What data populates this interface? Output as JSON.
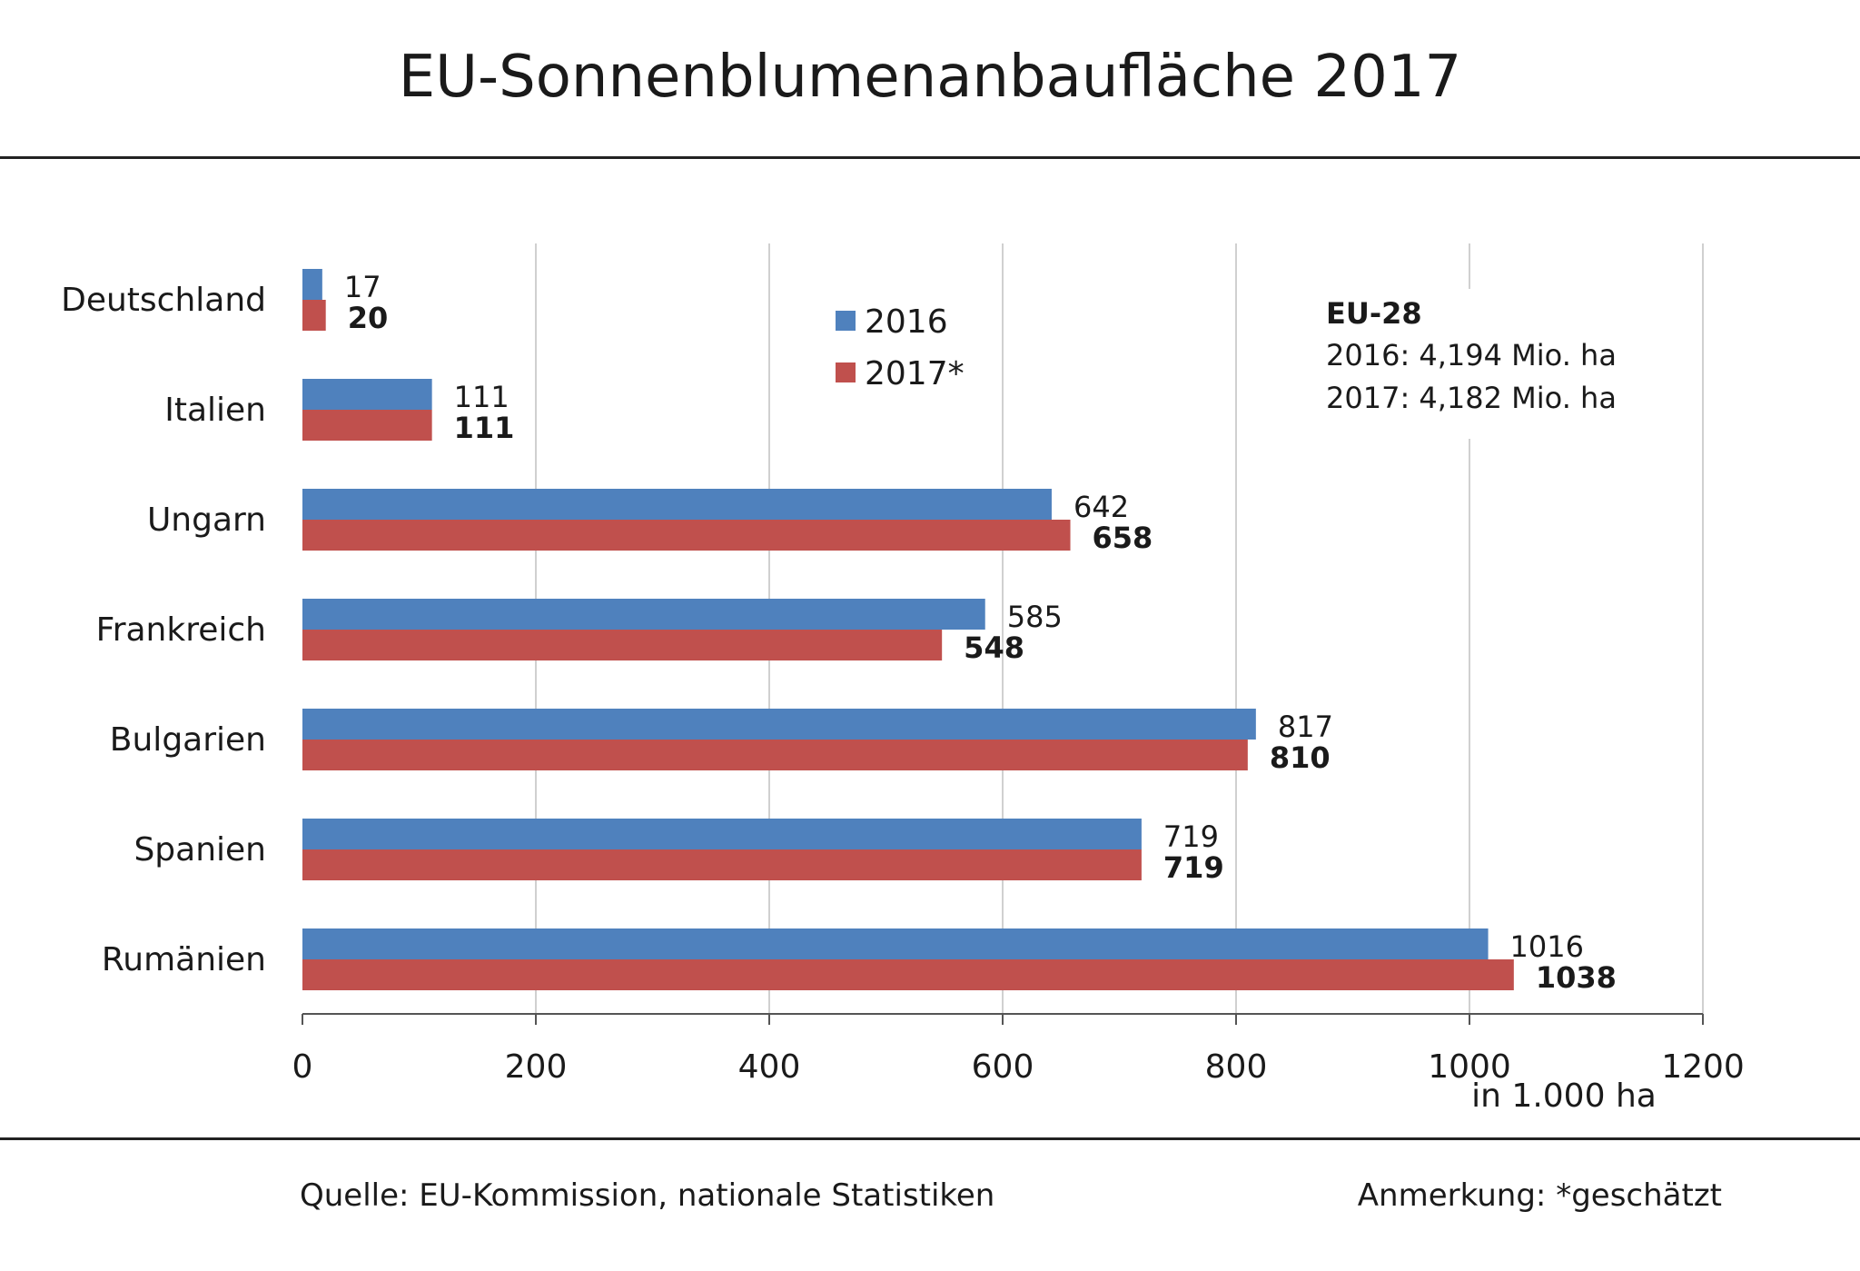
{
  "page": {
    "title": "EU-Sonnenblumenanbaufläche  2017",
    "source": "Quelle:  EU-Kommission, nationale Statistiken",
    "note": "Anmerkung: *geschätzt"
  },
  "chart_data": {
    "type": "bar",
    "orientation": "horizontal",
    "title": "EU-Sonnenblumenanbaufläche  2017",
    "categories": [
      "Deutschland",
      "Italien",
      "Ungarn",
      "Frankreich",
      "Bulgarien",
      "Spanien",
      "Rumänien"
    ],
    "series": [
      {
        "name": "2016",
        "color": "#4f81bd",
        "values": [
          17,
          111,
          642,
          585,
          817,
          719,
          1016
        ]
      },
      {
        "name": "2017*",
        "color": "#c0504d",
        "values": [
          20,
          111,
          658,
          548,
          810,
          719,
          1038
        ]
      }
    ],
    "xlim": [
      0,
      1200
    ],
    "xticks": [
      0,
      200,
      400,
      600,
      800,
      1000,
      1200
    ],
    "xlabel": "in 1.000  ha",
    "grid": true,
    "legend_position": "top-center",
    "annotation": {
      "title": "EU-28",
      "lines": [
        "2016: 4,194 Mio. ha",
        "2017: 4,182 Mio. ha"
      ]
    }
  }
}
